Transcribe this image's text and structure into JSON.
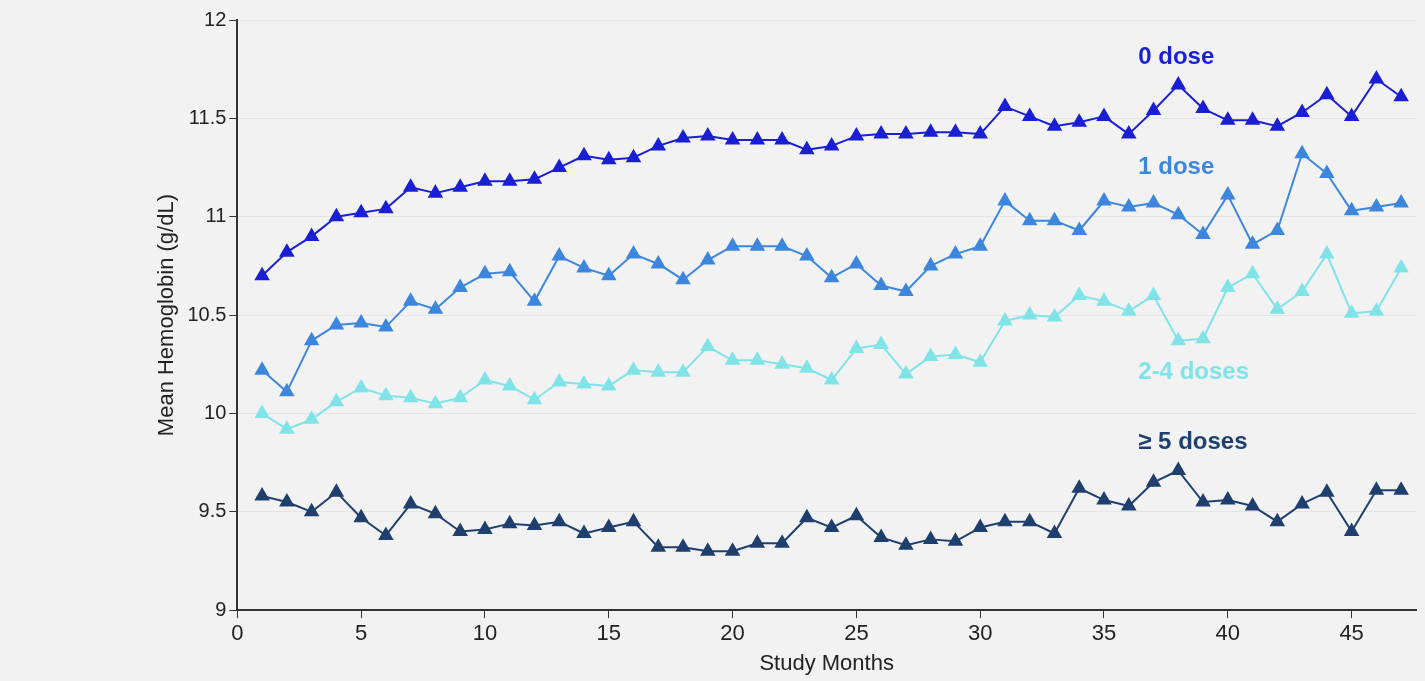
{
  "chart_data": {
    "type": "line",
    "xlabel": "Study Months",
    "ylabel": "Mean Hemoglobin (g/dL)",
    "x": [
      1,
      2,
      3,
      4,
      5,
      6,
      7,
      8,
      9,
      10,
      11,
      12,
      13,
      14,
      15,
      16,
      17,
      18,
      19,
      20,
      21,
      22,
      23,
      24,
      25,
      26,
      27,
      28,
      29,
      30,
      31,
      32,
      33,
      34,
      35,
      36,
      37,
      38,
      39,
      40,
      41,
      42,
      43,
      44,
      45,
      46,
      47
    ],
    "series": [
      {
        "name": "0 dose",
        "color": "#1a1fd4",
        "values": [
          10.7,
          10.82,
          10.9,
          11.0,
          11.02,
          11.04,
          11.15,
          11.12,
          11.15,
          11.18,
          11.18,
          11.19,
          11.25,
          11.31,
          11.29,
          11.3,
          11.36,
          11.4,
          11.41,
          11.39,
          11.39,
          11.39,
          11.34,
          11.36,
          11.41,
          11.42,
          11.42,
          11.43,
          11.43,
          11.42,
          11.56,
          11.51,
          11.46,
          11.48,
          11.51,
          11.42,
          11.54,
          11.67,
          11.55,
          11.49,
          11.49,
          11.46,
          11.53,
          11.62,
          11.51,
          11.7,
          11.61
        ]
      },
      {
        "name": "1 dose",
        "color": "#3d86dd",
        "values": [
          10.22,
          10.11,
          10.37,
          10.45,
          10.46,
          10.44,
          10.57,
          10.53,
          10.64,
          10.71,
          10.72,
          10.57,
          10.8,
          10.74,
          10.7,
          10.81,
          10.76,
          10.68,
          10.78,
          10.85,
          10.85,
          10.85,
          10.8,
          10.69,
          10.76,
          10.65,
          10.62,
          10.75,
          10.81,
          10.85,
          11.08,
          10.98,
          10.98,
          10.93,
          11.08,
          11.05,
          11.07,
          11.01,
          10.91,
          11.11,
          10.86,
          10.93,
          11.32,
          11.22,
          11.03,
          11.05,
          11.07
        ]
      },
      {
        "name": "2-4 doses",
        "color": "#7fe3e8",
        "values": [
          10.0,
          9.92,
          9.97,
          10.06,
          10.13,
          10.09,
          10.08,
          10.05,
          10.08,
          10.17,
          10.14,
          10.07,
          10.16,
          10.15,
          10.14,
          10.22,
          10.21,
          10.21,
          10.34,
          10.27,
          10.27,
          10.25,
          10.23,
          10.17,
          10.33,
          10.35,
          10.2,
          10.29,
          10.3,
          10.26,
          10.47,
          10.5,
          10.49,
          10.6,
          10.57,
          10.52,
          10.6,
          10.37,
          10.38,
          10.64,
          10.71,
          10.53,
          10.62,
          10.81,
          10.51,
          10.52,
          10.74
        ]
      },
      {
        "name": "≥ 5 doses",
        "color": "#1f3f6e",
        "values": [
          9.58,
          9.55,
          9.5,
          9.6,
          9.47,
          9.38,
          9.54,
          9.49,
          9.4,
          9.41,
          9.44,
          9.43,
          9.45,
          9.39,
          9.42,
          9.45,
          9.32,
          9.32,
          9.3,
          9.3,
          9.34,
          9.34,
          9.47,
          9.42,
          9.48,
          9.37,
          9.33,
          9.36,
          9.35,
          9.42,
          9.45,
          9.45,
          9.39,
          9.62,
          9.56,
          9.53,
          9.65,
          9.71,
          9.55,
          9.56,
          9.53,
          9.45,
          9.54,
          9.6,
          9.4,
          9.61,
          9.61
        ]
      }
    ],
    "xlim": [
      0,
      47.6
    ],
    "xticks": [
      0,
      5,
      10,
      15,
      20,
      25,
      30,
      35,
      40,
      45
    ],
    "ylim": [
      9,
      12
    ],
    "yticks": [
      9,
      9.5,
      10,
      10.5,
      11,
      11.5,
      12
    ],
    "grid": "y",
    "legend": false,
    "marker": "triangle",
    "line_style": "solid"
  }
}
